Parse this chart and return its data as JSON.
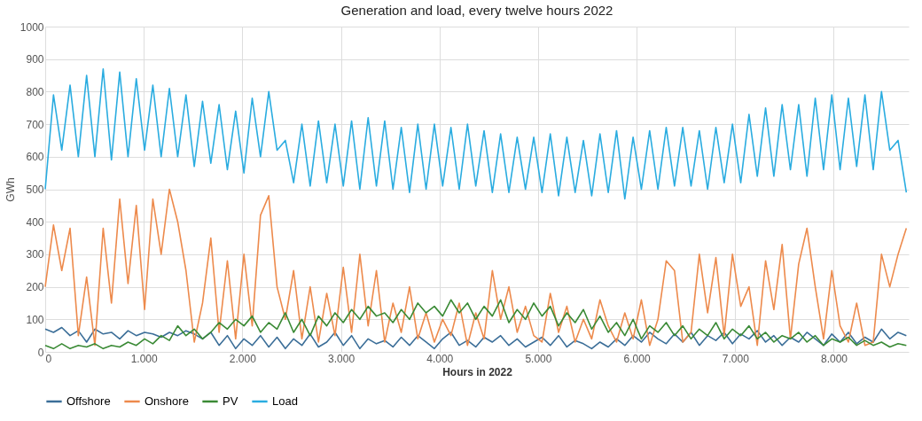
{
  "chart_data": {
    "type": "line",
    "title": "Generation and load, every twelve hours 2022",
    "xlabel": "Hours in 2022",
    "ylabel": "GWh",
    "x": [
      0,
      84,
      168,
      252,
      336,
      420,
      504,
      588,
      672,
      756,
      840,
      924,
      1008,
      1092,
      1176,
      1260,
      1344,
      1428,
      1512,
      1596,
      1680,
      1764,
      1848,
      1932,
      2016,
      2100,
      2184,
      2268,
      2352,
      2436,
      2520,
      2604,
      2688,
      2772,
      2856,
      2940,
      3024,
      3108,
      3192,
      3276,
      3360,
      3444,
      3528,
      3612,
      3696,
      3780,
      3864,
      3948,
      4032,
      4116,
      4200,
      4284,
      4368,
      4452,
      4536,
      4620,
      4704,
      4788,
      4872,
      4956,
      5040,
      5124,
      5208,
      5292,
      5376,
      5460,
      5544,
      5628,
      5712,
      5796,
      5880,
      5964,
      6048,
      6132,
      6216,
      6300,
      6384,
      6468,
      6552,
      6636,
      6720,
      6804,
      6888,
      6972,
      7056,
      7140,
      7224,
      7308,
      7392,
      7476,
      7560,
      7644,
      7728,
      7812,
      7896,
      7980,
      8064,
      8148,
      8232,
      8316,
      8400,
      8484,
      8568,
      8652,
      8736
    ],
    "series": [
      {
        "name": "Offshore",
        "color": "#3b6e98",
        "values": [
          70,
          60,
          75,
          50,
          65,
          30,
          70,
          55,
          60,
          40,
          65,
          50,
          60,
          55,
          45,
          60,
          50,
          65,
          55,
          40,
          60,
          20,
          50,
          10,
          40,
          20,
          50,
          15,
          45,
          10,
          40,
          20,
          55,
          15,
          30,
          60,
          20,
          50,
          10,
          40,
          25,
          35,
          15,
          45,
          20,
          50,
          30,
          10,
          40,
          60,
          20,
          35,
          15,
          45,
          30,
          50,
          20,
          40,
          15,
          30,
          45,
          20,
          50,
          15,
          35,
          25,
          10,
          30,
          15,
          40,
          20,
          50,
          30,
          60,
          40,
          25,
          55,
          30,
          60,
          20,
          50,
          35,
          60,
          25,
          55,
          40,
          65,
          30,
          50,
          20,
          45,
          30,
          60,
          40,
          20,
          55,
          30,
          60,
          25,
          45,
          30,
          70,
          40,
          60,
          50
        ]
      },
      {
        "name": "Onshore",
        "color": "#ed8a4c",
        "values": [
          200,
          390,
          250,
          380,
          50,
          230,
          20,
          380,
          150,
          470,
          210,
          450,
          130,
          470,
          300,
          500,
          400,
          250,
          30,
          150,
          350,
          60,
          280,
          40,
          300,
          80,
          420,
          480,
          200,
          100,
          250,
          40,
          200,
          30,
          180,
          50,
          260,
          60,
          300,
          80,
          250,
          30,
          150,
          60,
          200,
          40,
          120,
          30,
          100,
          50,
          150,
          20,
          120,
          40,
          250,
          100,
          200,
          60,
          140,
          50,
          30,
          180,
          60,
          140,
          30,
          100,
          40,
          160,
          80,
          30,
          120,
          40,
          160,
          20,
          100,
          280,
          250,
          30,
          60,
          300,
          120,
          290,
          50,
          300,
          140,
          200,
          20,
          280,
          130,
          330,
          40,
          270,
          380,
          200,
          40,
          250,
          80,
          30,
          150,
          20,
          30,
          300,
          200,
          300,
          380
        ]
      },
      {
        "name": "PV",
        "color": "#3a8a35",
        "values": [
          20,
          10,
          25,
          10,
          20,
          15,
          25,
          10,
          20,
          15,
          30,
          20,
          40,
          25,
          50,
          35,
          80,
          50,
          70,
          40,
          60,
          90,
          70,
          100,
          80,
          110,
          60,
          90,
          70,
          120,
          60,
          100,
          50,
          110,
          80,
          120,
          90,
          130,
          100,
          140,
          110,
          120,
          90,
          130,
          100,
          150,
          120,
          140,
          110,
          160,
          120,
          150,
          100,
          140,
          110,
          160,
          90,
          130,
          100,
          150,
          110,
          140,
          80,
          120,
          90,
          130,
          70,
          110,
          60,
          90,
          50,
          100,
          40,
          80,
          60,
          90,
          50,
          80,
          40,
          70,
          50,
          90,
          40,
          70,
          50,
          80,
          40,
          60,
          30,
          50,
          40,
          60,
          30,
          50,
          20,
          40,
          30,
          45,
          20,
          35,
          20,
          30,
          15,
          25,
          20
        ]
      },
      {
        "name": "Load",
        "color": "#2aace0",
        "values": [
          500,
          790,
          620,
          820,
          600,
          850,
          600,
          870,
          590,
          860,
          600,
          840,
          620,
          820,
          600,
          810,
          600,
          790,
          570,
          770,
          580,
          760,
          560,
          740,
          550,
          780,
          600,
          800,
          620,
          650,
          520,
          700,
          510,
          710,
          520,
          700,
          510,
          710,
          500,
          720,
          510,
          710,
          500,
          690,
          490,
          700,
          500,
          700,
          510,
          690,
          500,
          700,
          510,
          680,
          490,
          670,
          490,
          660,
          500,
          660,
          490,
          670,
          480,
          660,
          490,
          650,
          480,
          670,
          490,
          680,
          470,
          660,
          500,
          680,
          500,
          690,
          510,
          690,
          510,
          680,
          500,
          690,
          520,
          700,
          520,
          730,
          540,
          750,
          540,
          760,
          560,
          760,
          540,
          780,
          560,
          790,
          560,
          780,
          570,
          790,
          560,
          800,
          620,
          650,
          490
        ]
      }
    ],
    "xlim": [
      0,
      8760
    ],
    "xticks": [
      0,
      {
        "value": 1000,
        "label": "1.000"
      },
      {
        "value": 2000,
        "label": "2.000"
      },
      {
        "value": 3000,
        "label": "3.000"
      },
      {
        "value": 4000,
        "label": "4.000"
      },
      {
        "value": 5000,
        "label": "5.000"
      },
      {
        "value": 6000,
        "label": "6.000"
      },
      {
        "value": 7000,
        "label": "7.000"
      },
      {
        "value": 8000,
        "label": "8.000"
      }
    ],
    "ylim": [
      0,
      1000
    ],
    "yticks": [
      0,
      100,
      200,
      300,
      400,
      500,
      600,
      700,
      800,
      900,
      1000
    ],
    "grid": true,
    "legend": "bottom"
  }
}
